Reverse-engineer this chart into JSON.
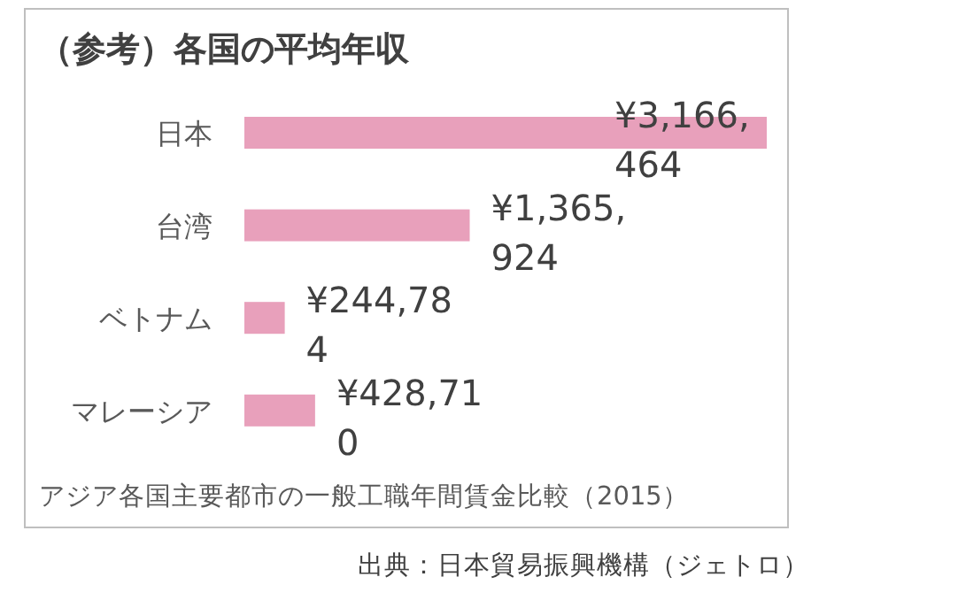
{
  "chart_data": {
    "type": "bar",
    "orientation": "horizontal",
    "title": "（参考）各国の平均年収",
    "categories": [
      "日本",
      "台湾",
      "ベトナム",
      "マレーシア"
    ],
    "values": [
      3166464,
      1365924,
      244784,
      428710
    ],
    "value_labels": [
      "¥3,166,464",
      "¥1,365,924",
      "¥244,784",
      "¥428,710"
    ],
    "color": "#e8a0bb",
    "annotations": [
      "アジア各国主要都市の一般工職年間賃金比較（2015）",
      "出典：日本貿易振興機構（ジェトロ）"
    ]
  }
}
